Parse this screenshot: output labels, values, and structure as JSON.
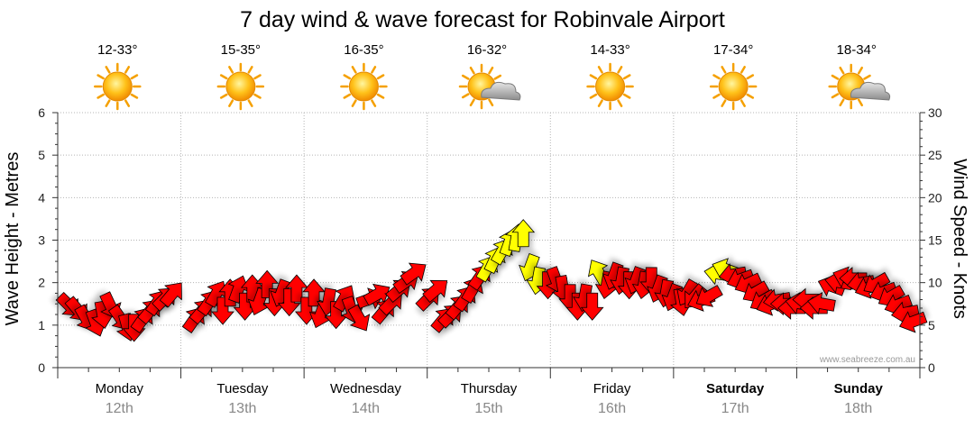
{
  "title": "7 day wind & wave forecast for Robinvale Airport",
  "watermark": "www.seabreeze.com.au",
  "left_axis_title": "Wave Height - Metres",
  "right_axis_title": "Wind Speed - Knots",
  "days": [
    {
      "name": "Monday",
      "date": "12th",
      "temp": "12-33°",
      "icon": "sunny-icon",
      "bold": false
    },
    {
      "name": "Tuesday",
      "date": "13th",
      "temp": "15-35°",
      "icon": "sunny-icon",
      "bold": false
    },
    {
      "name": "Wednesday",
      "date": "14th",
      "temp": "16-35°",
      "icon": "sunny-icon",
      "bold": false
    },
    {
      "name": "Thursday",
      "date": "15th",
      "temp": "16-32°",
      "icon": "partly-cloudy-icon",
      "bold": false
    },
    {
      "name": "Friday",
      "date": "16th",
      "temp": "14-33°",
      "icon": "sunny-icon",
      "bold": false
    },
    {
      "name": "Saturday",
      "date": "17th",
      "temp": "17-34°",
      "icon": "sunny-icon",
      "bold": true
    },
    {
      "name": "Sunday",
      "date": "18th",
      "temp": "18-34°",
      "icon": "partly-cloudy-icon",
      "bold": true
    }
  ],
  "colors": {
    "strong_wind": "#ff0000",
    "moderate_wind": "#ffff00",
    "arrow_outline": "#000000",
    "grid": "#c8c8c8"
  },
  "chart_data": {
    "type": "scatter",
    "title": "7 day wind & wave forecast for Robinvale Airport",
    "xlabel": "",
    "ylabel": "Wave Height - Metres",
    "y2label": "Wind Speed - Knots",
    "ylim": [
      0,
      6
    ],
    "y2lim": [
      0,
      30
    ],
    "yticks": [
      0,
      1,
      2,
      3,
      4,
      5,
      6
    ],
    "y2ticks": [
      0,
      5,
      10,
      15,
      20,
      25,
      30
    ],
    "grid": true,
    "x_unit": "day (0 = start of Monday 12th)",
    "xlim": [
      0,
      7
    ],
    "series": [
      {
        "description": "wind arrows: t = day offset, speed = knots, dir = direction arrow points to (deg, 0 = up, clockwise)",
        "points": [
          {
            "t": 0.08,
            "speed": 7.5,
            "dir": 135
          },
          {
            "t": 0.15,
            "speed": 7,
            "dir": 140
          },
          {
            "t": 0.22,
            "speed": 6,
            "dir": 150
          },
          {
            "t": 0.3,
            "speed": 5.5,
            "dir": 160
          },
          {
            "t": 0.36,
            "speed": 6.5,
            "dir": 170
          },
          {
            "t": 0.42,
            "speed": 7.5,
            "dir": 155
          },
          {
            "t": 0.5,
            "speed": 6,
            "dir": 145
          },
          {
            "t": 0.56,
            "speed": 5,
            "dir": 165
          },
          {
            "t": 0.62,
            "speed": 5,
            "dir": 180
          },
          {
            "t": 0.68,
            "speed": 5.5,
            "dir": 35
          },
          {
            "t": 0.74,
            "speed": 6.5,
            "dir": 40
          },
          {
            "t": 0.8,
            "speed": 7.5,
            "dir": 35
          },
          {
            "t": 0.86,
            "speed": 8,
            "dir": 45
          },
          {
            "t": 0.92,
            "speed": 8.5,
            "dir": 40
          },
          {
            "t": 1.1,
            "speed": 5.5,
            "dir": 35
          },
          {
            "t": 1.16,
            "speed": 6.5,
            "dir": 40
          },
          {
            "t": 1.22,
            "speed": 7.5,
            "dir": 35
          },
          {
            "t": 1.28,
            "speed": 8.5,
            "dir": 30
          },
          {
            "t": 1.34,
            "speed": 7,
            "dir": 180
          },
          {
            "t": 1.4,
            "speed": 8.5,
            "dir": 0
          },
          {
            "t": 1.46,
            "speed": 9,
            "dir": 20
          },
          {
            "t": 1.52,
            "speed": 7.5,
            "dir": 180
          },
          {
            "t": 1.58,
            "speed": 9,
            "dir": 0
          },
          {
            "t": 1.64,
            "speed": 8,
            "dir": 200
          },
          {
            "t": 1.7,
            "speed": 9.5,
            "dir": 0
          },
          {
            "t": 1.76,
            "speed": 8,
            "dir": 180
          },
          {
            "t": 1.82,
            "speed": 9,
            "dir": 200
          },
          {
            "t": 1.88,
            "speed": 8,
            "dir": 180
          },
          {
            "t": 1.94,
            "speed": 9,
            "dir": 0
          },
          {
            "t": 2.02,
            "speed": 7,
            "dir": 180
          },
          {
            "t": 2.08,
            "speed": 8.5,
            "dir": 0
          },
          {
            "t": 2.14,
            "speed": 6.5,
            "dir": 200
          },
          {
            "t": 2.2,
            "speed": 8,
            "dir": 190
          },
          {
            "t": 2.26,
            "speed": 6.5,
            "dir": 180
          },
          {
            "t": 2.32,
            "speed": 8,
            "dir": 30
          },
          {
            "t": 2.38,
            "speed": 7,
            "dir": 160
          },
          {
            "t": 2.44,
            "speed": 6,
            "dir": 150
          },
          {
            "t": 2.52,
            "speed": 8,
            "dir": 70
          },
          {
            "t": 2.58,
            "speed": 8.5,
            "dir": 60
          },
          {
            "t": 2.64,
            "speed": 6.5,
            "dir": 40
          },
          {
            "t": 2.7,
            "speed": 7.5,
            "dir": 45
          },
          {
            "t": 2.76,
            "speed": 9,
            "dir": 50
          },
          {
            "t": 2.82,
            "speed": 10,
            "dir": 55
          },
          {
            "t": 2.88,
            "speed": 11,
            "dir": 55
          },
          {
            "t": 3.0,
            "speed": 8,
            "dir": 45
          },
          {
            "t": 3.06,
            "speed": 9,
            "dir": 50
          },
          {
            "t": 3.12,
            "speed": 5.5,
            "dir": 40
          },
          {
            "t": 3.18,
            "speed": 6,
            "dir": 45
          },
          {
            "t": 3.24,
            "speed": 7,
            "dir": 40
          },
          {
            "t": 3.3,
            "speed": 8,
            "dir": 35
          },
          {
            "t": 3.36,
            "speed": 9,
            "dir": 30
          },
          {
            "t": 3.42,
            "speed": 10.5,
            "dir": 35
          },
          {
            "t": 3.48,
            "speed": 11.5,
            "dir": 30
          },
          {
            "t": 3.54,
            "speed": 12.5,
            "dir": 25
          },
          {
            "t": 3.6,
            "speed": 13.5,
            "dir": 30
          },
          {
            "t": 3.66,
            "speed": 14.5,
            "dir": 20
          },
          {
            "t": 3.72,
            "speed": 15,
            "dir": 10
          },
          {
            "t": 3.78,
            "speed": 15.5,
            "dir": 0
          },
          {
            "t": 3.84,
            "speed": 12,
            "dir": 200
          },
          {
            "t": 3.9,
            "speed": 10.5,
            "dir": 190
          },
          {
            "t": 3.98,
            "speed": 10,
            "dir": 180
          },
          {
            "t": 4.04,
            "speed": 10.5,
            "dir": 160
          },
          {
            "t": 4.1,
            "speed": 9.5,
            "dir": 170
          },
          {
            "t": 4.16,
            "speed": 8.5,
            "dir": 180
          },
          {
            "t": 4.22,
            "speed": 7.5,
            "dir": 180
          },
          {
            "t": 4.28,
            "speed": 8.5,
            "dir": 190
          },
          {
            "t": 4.34,
            "speed": 7.5,
            "dir": 180
          },
          {
            "t": 4.4,
            "speed": 11,
            "dir": 330
          },
          {
            "t": 4.46,
            "speed": 10,
            "dir": 190
          },
          {
            "t": 4.52,
            "speed": 11,
            "dir": 200
          },
          {
            "t": 4.58,
            "speed": 10.5,
            "dir": 190
          },
          {
            "t": 4.64,
            "speed": 10,
            "dir": 180
          },
          {
            "t": 4.7,
            "speed": 10.5,
            "dir": 200
          },
          {
            "t": 4.76,
            "speed": 10,
            "dir": 190
          },
          {
            "t": 4.82,
            "speed": 10.5,
            "dir": 180
          },
          {
            "t": 4.88,
            "speed": 9.5,
            "dir": 200
          },
          {
            "t": 4.94,
            "speed": 9,
            "dir": 190
          },
          {
            "t": 5.0,
            "speed": 8.5,
            "dir": 200
          },
          {
            "t": 5.06,
            "speed": 8,
            "dir": 170
          },
          {
            "t": 5.12,
            "speed": 9,
            "dir": 210
          },
          {
            "t": 5.18,
            "speed": 8.5,
            "dir": 220
          },
          {
            "t": 5.24,
            "speed": 8,
            "dir": 250
          },
          {
            "t": 5.3,
            "speed": 8.5,
            "dir": 240
          },
          {
            "t": 5.38,
            "speed": 11,
            "dir": 280
          },
          {
            "t": 5.44,
            "speed": 11.5,
            "dir": 290
          },
          {
            "t": 5.5,
            "speed": 11,
            "dir": 260
          },
          {
            "t": 5.56,
            "speed": 10.5,
            "dir": 250
          },
          {
            "t": 5.62,
            "speed": 10,
            "dir": 245
          },
          {
            "t": 5.68,
            "speed": 9,
            "dir": 240
          },
          {
            "t": 5.74,
            "speed": 8,
            "dir": 240
          },
          {
            "t": 5.8,
            "speed": 7.5,
            "dir": 250
          },
          {
            "t": 5.86,
            "speed": 8,
            "dir": 260
          },
          {
            "t": 5.92,
            "speed": 7.5,
            "dir": 270
          },
          {
            "t": 5.98,
            "speed": 7,
            "dir": 270
          },
          {
            "t": 6.04,
            "speed": 7.5,
            "dir": 280
          },
          {
            "t": 6.1,
            "speed": 8,
            "dir": 270
          },
          {
            "t": 6.16,
            "speed": 7,
            "dir": 270
          },
          {
            "t": 6.22,
            "speed": 7.5,
            "dir": 280
          },
          {
            "t": 6.3,
            "speed": 9.5,
            "dir": 290
          },
          {
            "t": 6.36,
            "speed": 10,
            "dir": 280
          },
          {
            "t": 6.42,
            "speed": 10.5,
            "dir": 290
          },
          {
            "t": 6.48,
            "speed": 10.5,
            "dir": 270
          },
          {
            "t": 6.54,
            "speed": 10,
            "dir": 260
          },
          {
            "t": 6.6,
            "speed": 9.5,
            "dir": 250
          },
          {
            "t": 6.66,
            "speed": 10,
            "dir": 240
          },
          {
            "t": 6.72,
            "speed": 9,
            "dir": 250
          },
          {
            "t": 6.78,
            "speed": 8.5,
            "dir": 240
          },
          {
            "t": 6.84,
            "speed": 7.5,
            "dir": 250
          },
          {
            "t": 6.9,
            "speed": 6.5,
            "dir": 260
          },
          {
            "t": 6.96,
            "speed": 5.5,
            "dir": 250
          }
        ]
      }
    ]
  }
}
